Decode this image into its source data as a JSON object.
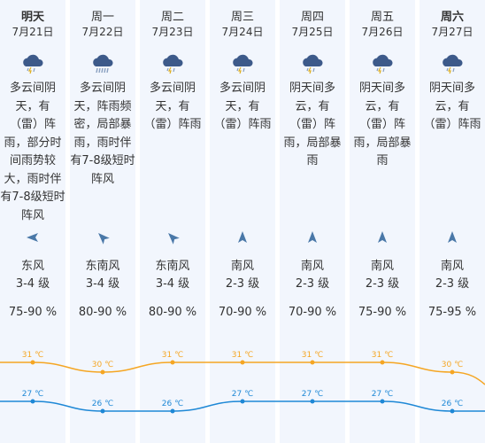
{
  "days": [
    {
      "day": "明天",
      "date": "7月21日",
      "bold": true,
      "icon": "thunder-rain-icon",
      "desc": "多云间阴\n天，有\n（雷）阵\n雨，部分时\n间雨势较\n大，雨时伴\n有7-8级短时\n阵风",
      "dir_icon": "wind-direction-east-icon",
      "dir_angle": -90,
      "wind": "东风",
      "level": "3-4 级",
      "humidity": "75-90 %"
    },
    {
      "day": "周一",
      "date": "7月22日",
      "bold": false,
      "icon": "heavy-thunder-rain-icon",
      "desc": "多云间阴\n天，阵雨频\n密，局部暴\n雨，雨时伴\n有7-8级短时\n阵风",
      "dir_icon": "wind-direction-southeast-icon",
      "dir_angle": -45,
      "wind": "东南风",
      "level": "3-4 级",
      "humidity": "80-90 %"
    },
    {
      "day": "周二",
      "date": "7月23日",
      "bold": false,
      "icon": "thunder-rain-icon",
      "desc": "多云间阴\n天，有\n（雷）阵雨",
      "dir_icon": "wind-direction-southeast-icon",
      "dir_angle": -45,
      "wind": "东南风",
      "level": "3-4 级",
      "humidity": "80-90 %"
    },
    {
      "day": "周三",
      "date": "7月24日",
      "bold": false,
      "icon": "thunder-rain-icon",
      "desc": "多云间阴\n天，有\n（雷）阵雨",
      "dir_icon": "wind-direction-south-icon",
      "dir_angle": 0,
      "wind": "南风",
      "level": "2-3 级",
      "humidity": "70-90 %"
    },
    {
      "day": "周四",
      "date": "7月25日",
      "bold": false,
      "icon": "thunder-rain-icon",
      "desc": "阴天间多\n云，有\n（雷）阵\n雨，局部暴\n雨",
      "dir_icon": "wind-direction-south-icon",
      "dir_angle": 0,
      "wind": "南风",
      "level": "2-3 级",
      "humidity": "70-90 %"
    },
    {
      "day": "周五",
      "date": "7月26日",
      "bold": false,
      "icon": "thunder-rain-icon",
      "desc": "阴天间多\n云，有\n（雷）阵\n雨，局部暴\n雨",
      "dir_icon": "wind-direction-south-icon",
      "dir_angle": 0,
      "wind": "南风",
      "level": "2-3 级",
      "humidity": "75-90 %"
    },
    {
      "day": "周六",
      "date": "7月27日",
      "bold": true,
      "icon": "thunder-rain-icon",
      "desc": "阴天间多\n云，有\n（雷）阵雨",
      "dir_icon": "wind-direction-south-icon",
      "dir_angle": 0,
      "wind": "南风",
      "level": "2-3 级",
      "humidity": "75-95 %"
    }
  ],
  "colors": {
    "high": "#f5a623",
    "low": "#1e88d6",
    "icon": "#3d5a8a",
    "column_bg": "#f2f6fd"
  },
  "chart_data": {
    "type": "line",
    "categories": [
      "明天",
      "周一",
      "周二",
      "周三",
      "周四",
      "周五",
      "周六"
    ],
    "series": [
      {
        "values": [
          31,
          30,
          31,
          31,
          31,
          31,
          30
        ],
        "labels": [
          "31 ℃",
          "30 ℃",
          "31 ℃",
          "31 ℃",
          "31 ℃",
          "31 ℃",
          "30 ℃"
        ]
      },
      {
        "values": [
          27,
          26,
          26,
          27,
          27,
          27,
          26
        ],
        "labels": [
          "27 ℃",
          "26 ℃",
          "26 ℃",
          "27 ℃",
          "27 ℃",
          "27 ℃",
          "26 ℃"
        ]
      }
    ],
    "grid": false
  }
}
